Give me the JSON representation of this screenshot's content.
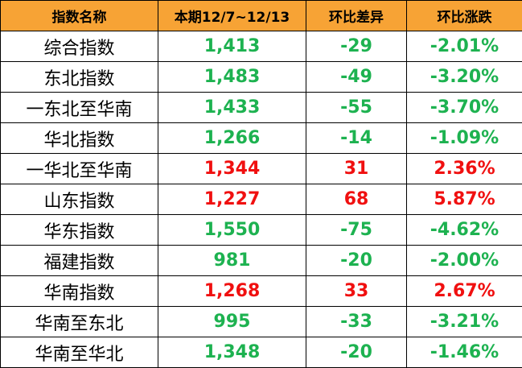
{
  "table": {
    "header": [
      "指数名称",
      "本期12/7~12/13",
      "环比差异",
      "环比涨跌"
    ],
    "rows": [
      [
        "综合指数",
        "1,413",
        "-29",
        "-2.01%"
      ],
      [
        "东北指数",
        "1,483",
        "-49",
        "-3.20%"
      ],
      [
        "一东北至华南",
        "1,433",
        "-55",
        "-3.70%"
      ],
      [
        "华北指数",
        "1,266",
        "-14",
        "-1.09%"
      ],
      [
        "一华北至华南",
        "1,344",
        "31",
        "2.36%"
      ],
      [
        "山东指数",
        "1,227",
        "68",
        "5.87%"
      ],
      [
        "华东指数",
        "1,550",
        "-75",
        "-4.62%"
      ],
      [
        "福建指数",
        "981",
        "-20",
        "-2.00%"
      ],
      [
        "华南指数",
        "1,268",
        "33",
        "2.67%"
      ],
      [
        "华南至东北",
        "995",
        "-33",
        "-3.21%"
      ],
      [
        "华南至华北",
        "1,348",
        "-20",
        "-1.46%"
      ]
    ],
    "row_colors": [
      "#1db250",
      "#1db250",
      "#1db250",
      "#1db250",
      "#f01010",
      "#f01010",
      "#1db250",
      "#1db250",
      "#f01010",
      "#1db250",
      "#1db250"
    ],
    "header_color": "#f7a335"
  }
}
